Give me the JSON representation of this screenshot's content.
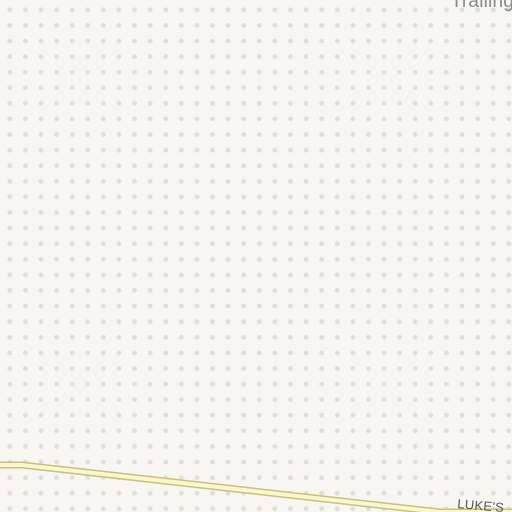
{
  "map": {
    "background_color": "#f7f6f2",
    "pattern": {
      "type": "dot-grid",
      "dot_color": "#dfdfd7"
    },
    "labels": {
      "area_name": "Trailing",
      "road_name": "LUKE'S"
    },
    "road": {
      "casing_color": "#c9c07a",
      "fill_color": "#fbf6cf"
    }
  }
}
